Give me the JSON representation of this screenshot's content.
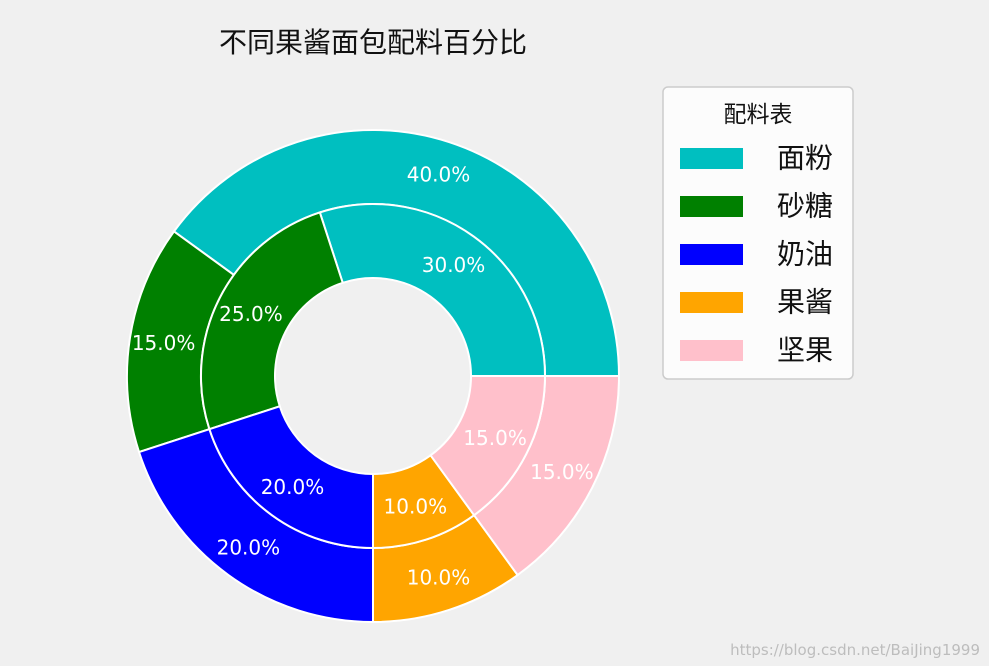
{
  "chart_data": {
    "type": "pie",
    "title": "不同果酱面包配料百分比",
    "categories": [
      "面粉",
      "砂糖",
      "奶油",
      "果酱",
      "坚果"
    ],
    "colors": [
      "#00bfc0",
      "#008000",
      "#0000ff",
      "#ffa500",
      "#ffc0cb"
    ],
    "series": [
      {
        "values": [
          40,
          15,
          20,
          10,
          15
        ],
        "labels": [
          "40.0%",
          "15.0%",
          "20.0%",
          "10.0%",
          "15.0%"
        ]
      },
      {
        "values": [
          30,
          25,
          20,
          10,
          15
        ],
        "labels": [
          "30.0%",
          "25.0%",
          "20.0%",
          "10.0%",
          "15.0%"
        ]
      }
    ],
    "legend": {
      "title": "配料表",
      "placement": "right",
      "entries": [
        "面粉",
        "砂糖",
        "奶油",
        "果酱",
        "坚果"
      ]
    },
    "start_angle_deg": 0,
    "direction": "counterclockwise",
    "wedge_edge_color": "#ffffff"
  },
  "watermark": "https://blog.csdn.net/BaiJing1999"
}
